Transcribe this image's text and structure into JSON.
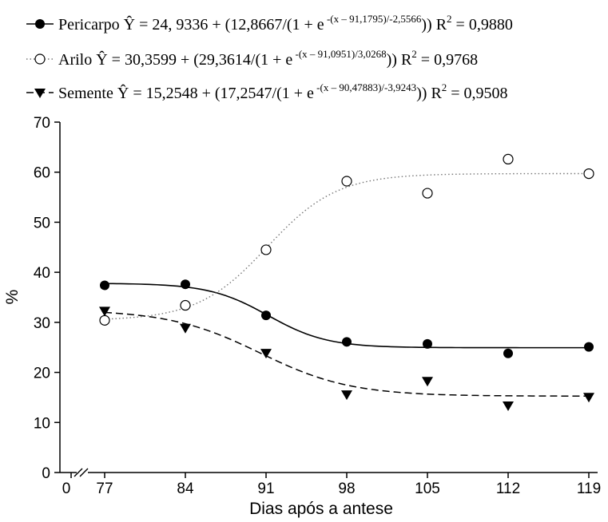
{
  "legend": [
    {
      "name": "Pericarpo",
      "eq_main": "24, 9336 + (12,8667/(1 + e",
      "eq_exp": "-(x – 91,1795)/-2,5566",
      "eq_close": "))",
      "r2": "= 0,9880"
    },
    {
      "name": "Arilo",
      "eq_main": "30,3599 + (29,3614/(1 + e",
      "eq_exp": "-(x – 91,0951)/3,0268",
      "eq_close": "))",
      "r2": "= 0,9768"
    },
    {
      "name": "Semente",
      "eq_main": "15,2548 + (17,2547/(1 + e",
      "eq_exp": "-(x – 90,47883)/-3,9243",
      "eq_close": "))",
      "r2": "= 0,9508"
    }
  ],
  "legend_text": {
    "yhat": "Ŷ =",
    "r2_label": "R",
    "r2_sup": "2"
  },
  "chart_data": {
    "type": "scatter",
    "xlabel": "Dias após a antese",
    "ylabel": "%",
    "x_ticks": [
      "0",
      "77",
      "84",
      "91",
      "98",
      "105",
      "112",
      "119"
    ],
    "y_ticks": [
      "0",
      "10",
      "20",
      "30",
      "40",
      "50",
      "60",
      "70"
    ],
    "ylim": [
      0,
      70
    ],
    "x": [
      77,
      84,
      91,
      98,
      105,
      112,
      119
    ],
    "axis_break": "between 0 and 77",
    "grid": false,
    "legend_position": "top",
    "series": [
      {
        "name": "Pericarpo",
        "marker": "filled-circle",
        "line": "solid",
        "values": [
          37.4,
          37.6,
          31.4,
          26.1,
          25.7,
          23.8,
          25.1
        ],
        "model": {
          "a": 24.9336,
          "b": 12.8667,
          "x0": 91.1795,
          "s": -2.5566
        }
      },
      {
        "name": "Arilo",
        "marker": "open-circle",
        "line": "dotted",
        "values": [
          30.4,
          33.4,
          44.5,
          58.2,
          55.8,
          62.6,
          59.7
        ],
        "model": {
          "a": 30.3599,
          "b": 29.3614,
          "x0": 91.0951,
          "s": 3.0268
        }
      },
      {
        "name": "Semente",
        "marker": "filled-triangle-down",
        "line": "dashed",
        "values": [
          32.3,
          28.9,
          23.9,
          15.6,
          18.3,
          13.4,
          15.1
        ],
        "model": {
          "a": 15.2548,
          "b": 17.2547,
          "x0": 90.47883,
          "s": -3.9243
        }
      }
    ]
  }
}
